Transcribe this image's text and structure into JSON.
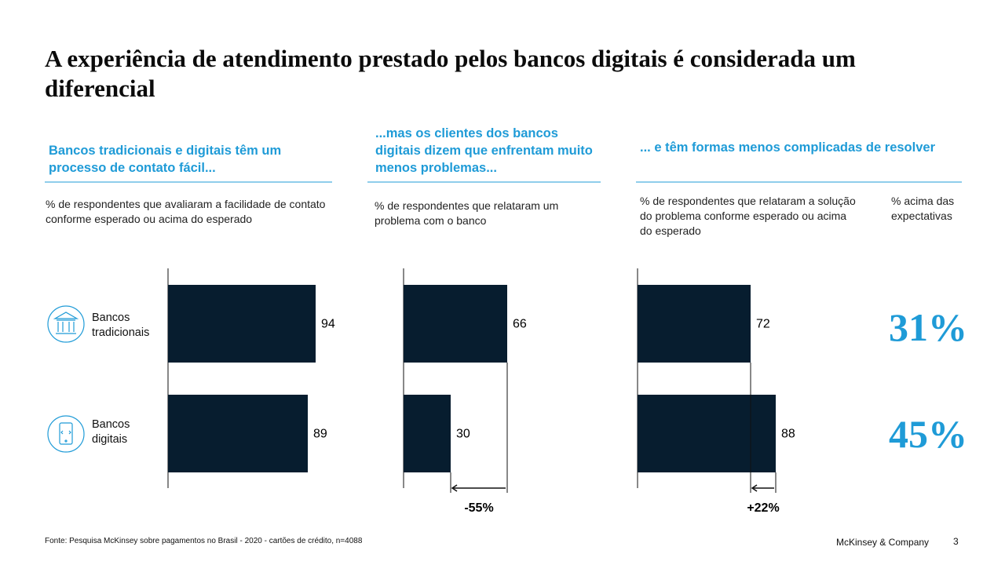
{
  "title": "A experiência de atendimento prestado pelos bancos digitais é considerada um diferencial",
  "chart_data": [
    {
      "type": "bar",
      "heading": "Bancos tradicionais e digitais têm um processo de contato fácil...",
      "subtitle": "% de respondentes que avaliaram a facilidade de contato conforme esperado ou acima do esperado",
      "categories": [
        "Bancos tradicionais",
        "Bancos digitais"
      ],
      "values": [
        94,
        89
      ],
      "color": "#071d2f",
      "xlim": [
        0,
        100
      ]
    },
    {
      "type": "bar",
      "heading": "...mas os clientes dos bancos digitais dizem que enfrentam muito menos problemas...",
      "subtitle": "% de respondentes que relataram um problema com o banco",
      "values": [
        66,
        30
      ],
      "color": "#071d2f",
      "xlim": [
        0,
        100
      ],
      "annotation": "-55%"
    },
    {
      "type": "bar",
      "heading": "... e têm formas menos complicadas de resolver",
      "subtitle": "% de respondentes que relataram a solução do problema conforme esperado ou acima do esperado",
      "values": [
        72,
        88
      ],
      "color": "#071d2f",
      "xlim": [
        0,
        100
      ],
      "annotation": "+22%"
    }
  ],
  "expectations": {
    "label": "% acima das expectativas",
    "items": [
      "31%",
      "45%"
    ]
  },
  "footer": {
    "source": "Fonte: Pesquisa McKinsey sobre pagamentos no Brasil - 2020 - cartões de crédito, n=4088",
    "brand": "McKinsey & Company",
    "page": "3"
  }
}
